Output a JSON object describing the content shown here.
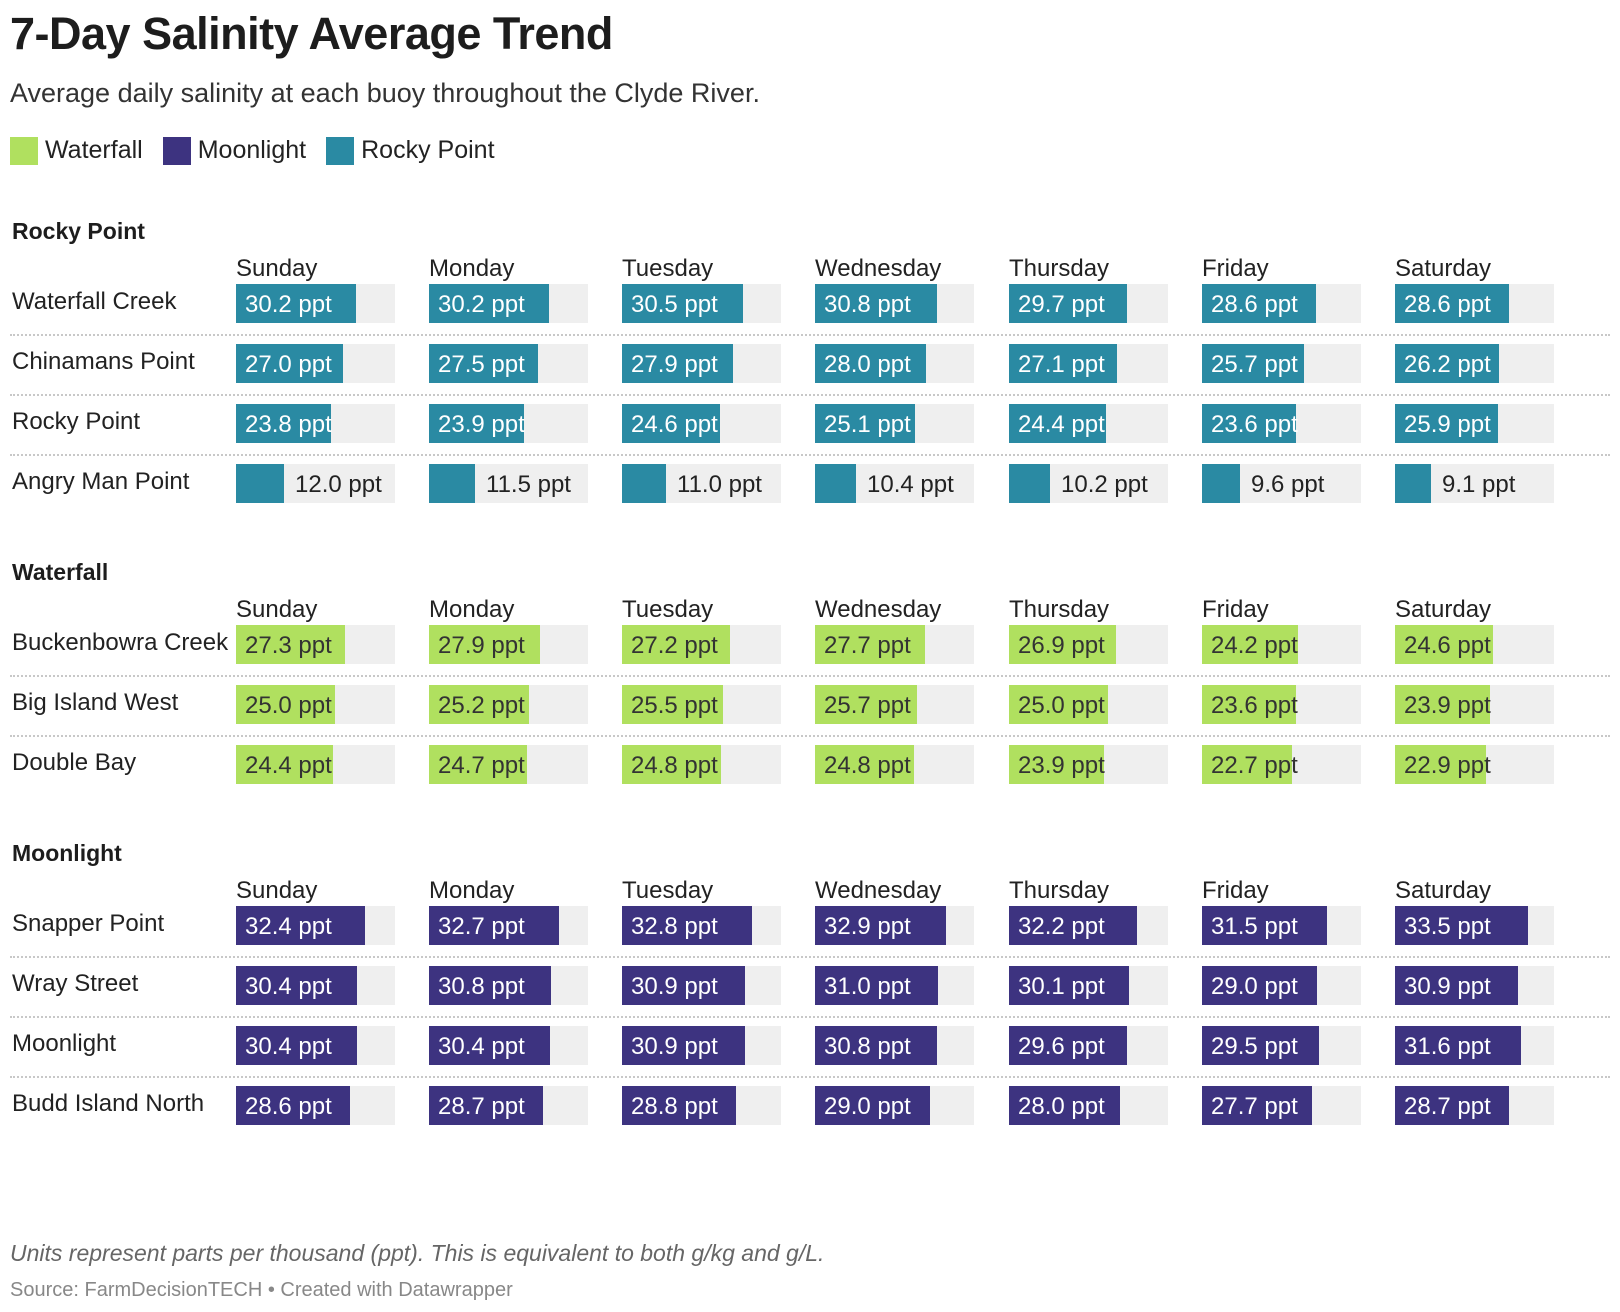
{
  "title": "7-Day Salinity Average Trend",
  "subtitle": "Average daily salinity at each buoy throughout the Clyde River.",
  "legend": [
    {
      "name": "Waterfall",
      "color": "#b0e05f"
    },
    {
      "name": "Moonlight",
      "color": "#3d3380"
    },
    {
      "name": "Rocky Point",
      "color": "#2a8aa3"
    }
  ],
  "notes": "Units represent parts per thousand (ppt). This is equivalent to both g/kg and g/L.",
  "source": "Source: FarmDecisionTECH • Created with Datawrapper",
  "chart_data": {
    "type": "bar",
    "unit": "ppt",
    "days": [
      "Sunday",
      "Monday",
      "Tuesday",
      "Wednesday",
      "Thursday",
      "Friday",
      "Saturday"
    ],
    "groups": [
      {
        "name": "Rocky Point",
        "color": "#2a8aa3",
        "rows": [
          {
            "name": "Waterfall Creek",
            "values": [
              30.2,
              30.2,
              30.5,
              30.8,
              29.7,
              28.6,
              28.6
            ]
          },
          {
            "name": "Chinamans Point",
            "values": [
              27.0,
              27.5,
              27.9,
              28.0,
              27.1,
              25.7,
              26.2
            ]
          },
          {
            "name": "Rocky Point",
            "values": [
              23.8,
              23.9,
              24.6,
              25.1,
              24.4,
              23.6,
              25.9
            ]
          },
          {
            "name": "Angry Man Point",
            "values": [
              12.0,
              11.5,
              11.0,
              10.4,
              10.2,
              9.6,
              9.1
            ]
          }
        ]
      },
      {
        "name": "Waterfall",
        "color": "#b0e05f",
        "rows": [
          {
            "name": "Buckenbowra Creek",
            "values": [
              27.3,
              27.9,
              27.2,
              27.7,
              26.9,
              24.2,
              24.6
            ]
          },
          {
            "name": "Big Island West",
            "values": [
              25.0,
              25.2,
              25.5,
              25.7,
              25.0,
              23.6,
              23.9
            ]
          },
          {
            "name": "Double Bay",
            "values": [
              24.4,
              24.7,
              24.8,
              24.8,
              23.9,
              22.7,
              22.9
            ]
          }
        ]
      },
      {
        "name": "Moonlight",
        "color": "#3d3380",
        "rows": [
          {
            "name": "Snapper Point",
            "values": [
              32.4,
              32.7,
              32.8,
              32.9,
              32.2,
              31.5,
              33.5
            ]
          },
          {
            "name": "Wray Street",
            "values": [
              30.4,
              30.8,
              30.9,
              31.0,
              30.1,
              29.0,
              30.9
            ]
          },
          {
            "name": "Moonlight",
            "values": [
              30.4,
              30.4,
              30.9,
              30.8,
              29.6,
              29.5,
              31.6
            ]
          },
          {
            "name": "Budd Island North",
            "values": [
              28.6,
              28.7,
              28.8,
              29.0,
              28.0,
              27.7,
              28.7
            ]
          }
        ]
      }
    ]
  }
}
